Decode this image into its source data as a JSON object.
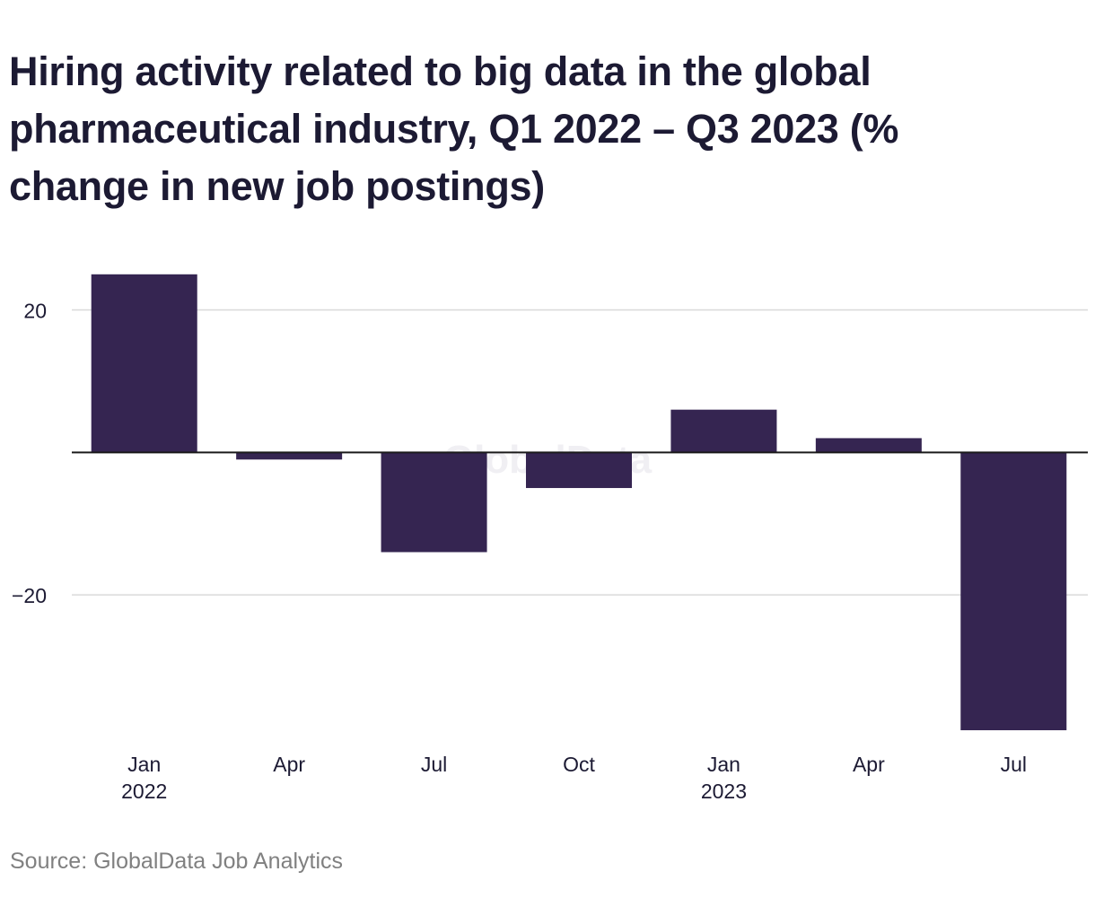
{
  "title": "Hiring activity related to big data in the global pharmaceutical industry, Q1 2022 – Q3 2023 (% change in new job postings)",
  "source": "Source: GlobalData Job Analytics",
  "watermark": "GlobalData",
  "colors": {
    "bar": "#352551",
    "gridline": "#d9d9d9",
    "zero_line": "#1a1a1a",
    "text": "#1c1a33",
    "source_text": "#808080",
    "watermark": "#f0eff3"
  },
  "chart_data": {
    "type": "bar",
    "title": "Hiring activity related to big data in the global pharmaceutical industry, Q1 2022 – Q3 2023 (% change in new job postings)",
    "xlabel": "",
    "ylabel": "",
    "categories": [
      "Jan 2022",
      "Apr",
      "Jul",
      "Oct",
      "Jan 2023",
      "Apr",
      "Jul"
    ],
    "tick_labels": [
      {
        "line1": "Jan",
        "line2": "2022"
      },
      {
        "line1": "Apr",
        "line2": ""
      },
      {
        "line1": "Jul",
        "line2": ""
      },
      {
        "line1": "Oct",
        "line2": ""
      },
      {
        "line1": "Jan",
        "line2": "2023"
      },
      {
        "line1": "Apr",
        "line2": ""
      },
      {
        "line1": "Jul",
        "line2": ""
      }
    ],
    "values": [
      25.0,
      -1.0,
      -14.0,
      -5.0,
      6.0,
      2.0,
      -39.0
    ],
    "ylim": [
      -39.5,
      28.5
    ],
    "yticks": [
      20,
      -20
    ],
    "ytick_labels": [
      "20",
      "−20"
    ],
    "grid": true,
    "legend": "none"
  }
}
